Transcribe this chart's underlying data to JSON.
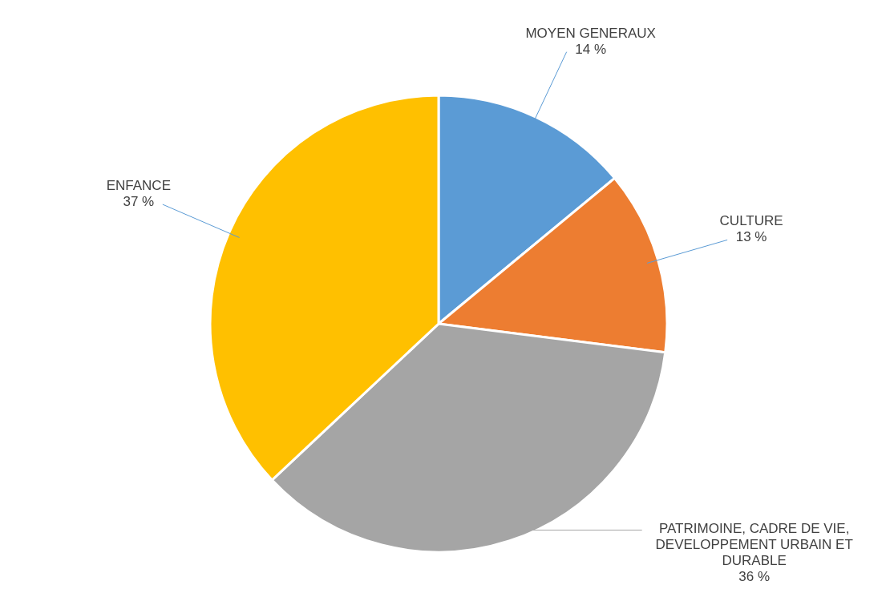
{
  "chart_data": {
    "type": "pie",
    "categories": [
      "MOYEN GENERAUX",
      "CULTURE",
      "PATRIMOINE, CADRE DE VIE, DEVELOPPEMENT URBAIN ET DURABLE",
      "ENFANCE"
    ],
    "values": [
      14,
      13,
      36,
      37
    ],
    "colors": [
      "#5b9bd5",
      "#ed7d31",
      "#a5a5a5",
      "#ffc000"
    ],
    "value_labels": [
      "14 %",
      "13 %",
      "36 %",
      "37 %"
    ]
  }
}
